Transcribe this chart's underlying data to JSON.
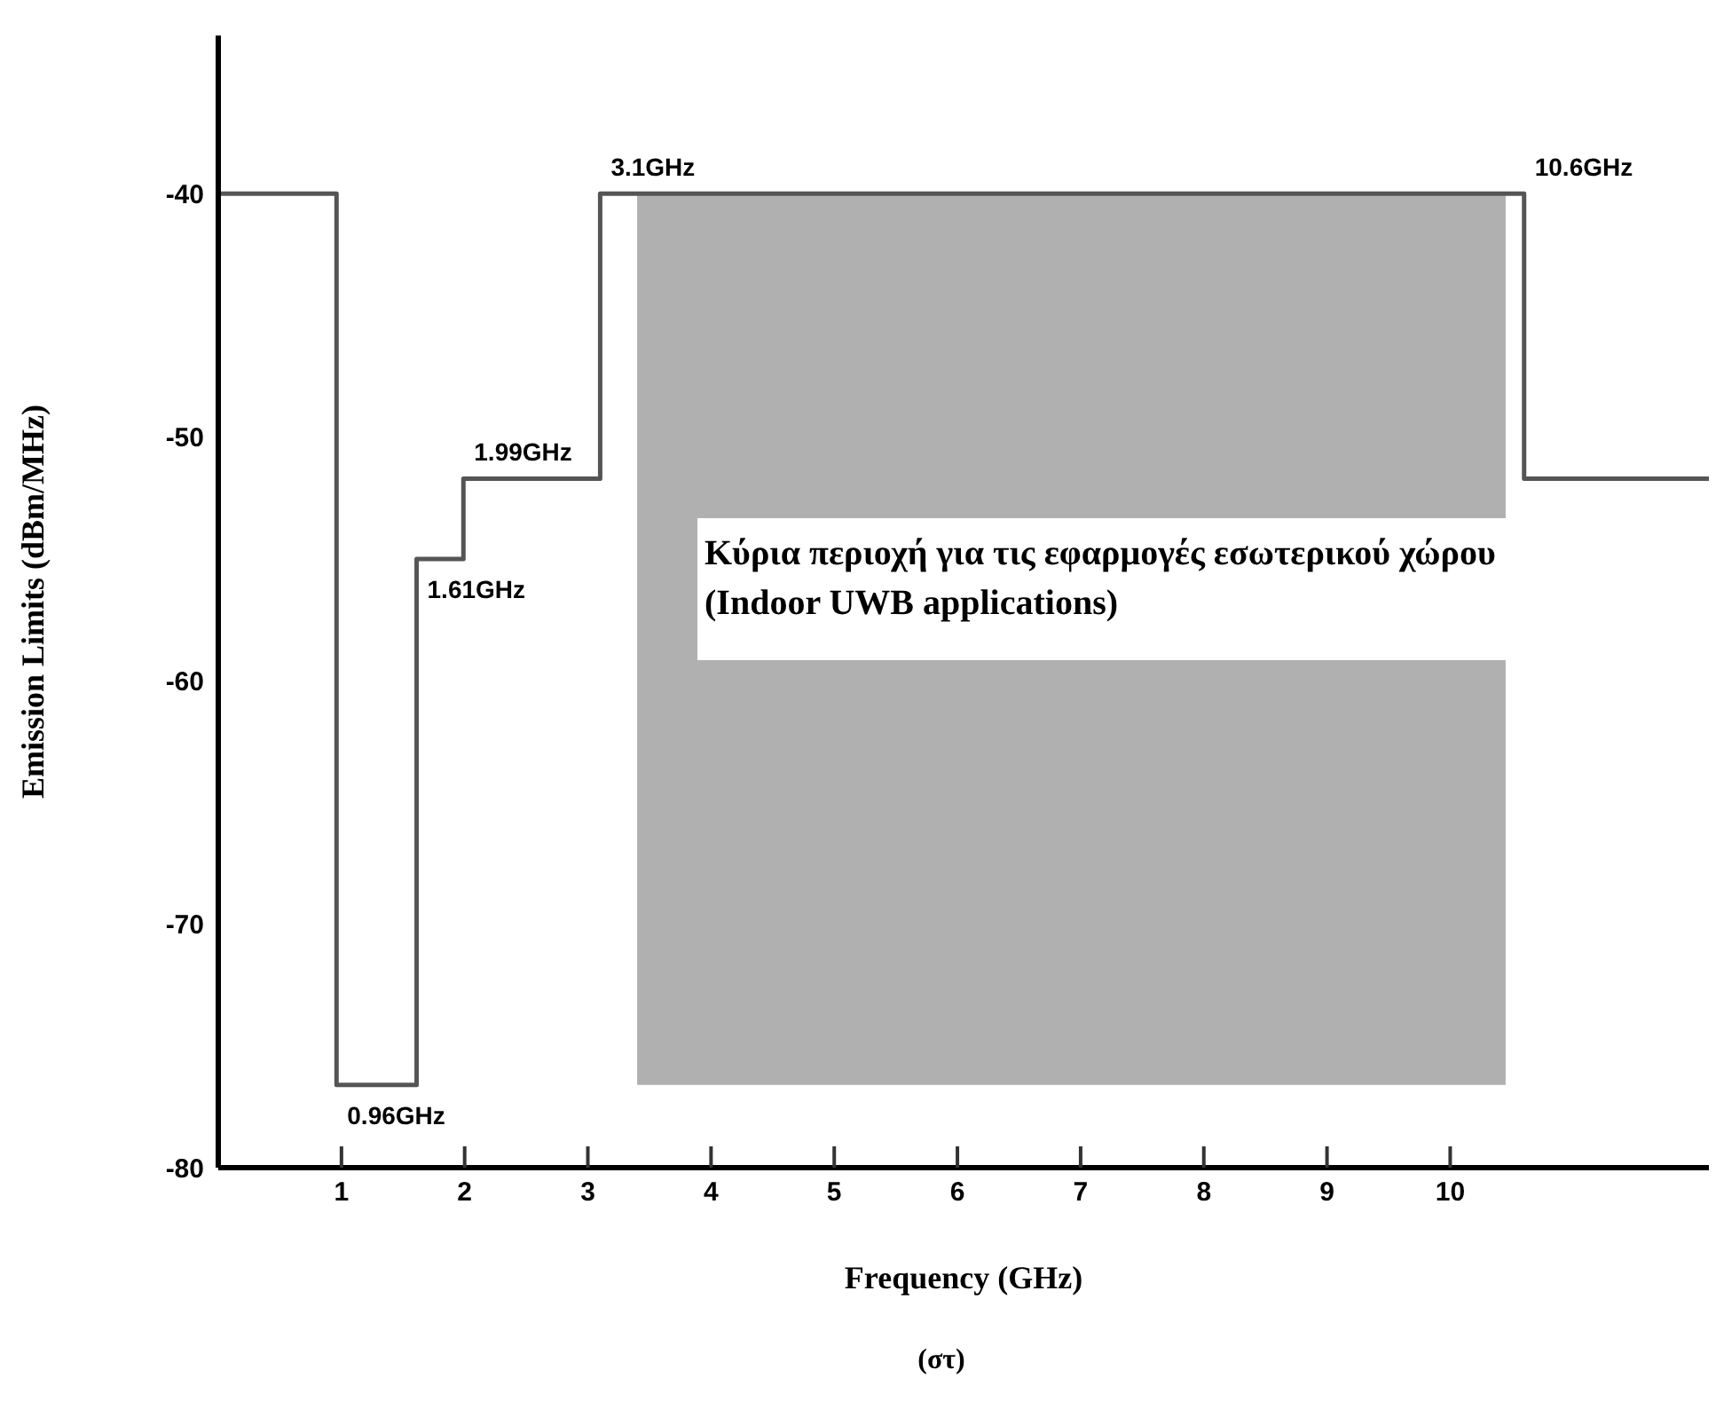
{
  "chart_data": {
    "type": "step",
    "xlabel": "Frequency (GHz)",
    "ylabel": "Emission Limits (dBm/MHz)",
    "x": [
      0,
      0.96,
      1.61,
      1.99,
      3.1,
      10.6,
      12.1
    ],
    "series": [
      {
        "color": "#555555",
        "values": [
          -40,
          -76.6,
          -55,
          -51.7,
          -40,
          -51.7,
          -51.7
        ]
      }
    ],
    "xlim": [
      0,
      12.1
    ],
    "xticks": [
      1,
      2,
      3,
      4,
      5,
      6,
      7,
      8,
      9,
      10
    ],
    "ylim": [
      -80,
      -33.5
    ],
    "yticks": [
      -80,
      -70,
      -60,
      -50,
      -40
    ],
    "bands": [
      {
        "axis": "x",
        "from": 3.4,
        "to": 10.45,
        "color": "#b0b0b0"
      }
    ],
    "annotations": [
      {
        "text": "3.1GHz",
        "x": 3.1,
        "y": -40
      },
      {
        "text": "10.6GHz",
        "x": 10.6,
        "y": -40
      },
      {
        "text": "1.99GHz",
        "x": 1.99,
        "y": -51.7
      },
      {
        "text": "1.61GHz",
        "x": 1.61,
        "y": -55
      },
      {
        "text": "0.96GHz",
        "x": 0.96,
        "y": -76.6
      },
      "Κύρια περιοχή για τις εφαρμογές εσωτερικού χώρου (Indoor UWB applications)",
      "(στ)"
    ]
  }
}
